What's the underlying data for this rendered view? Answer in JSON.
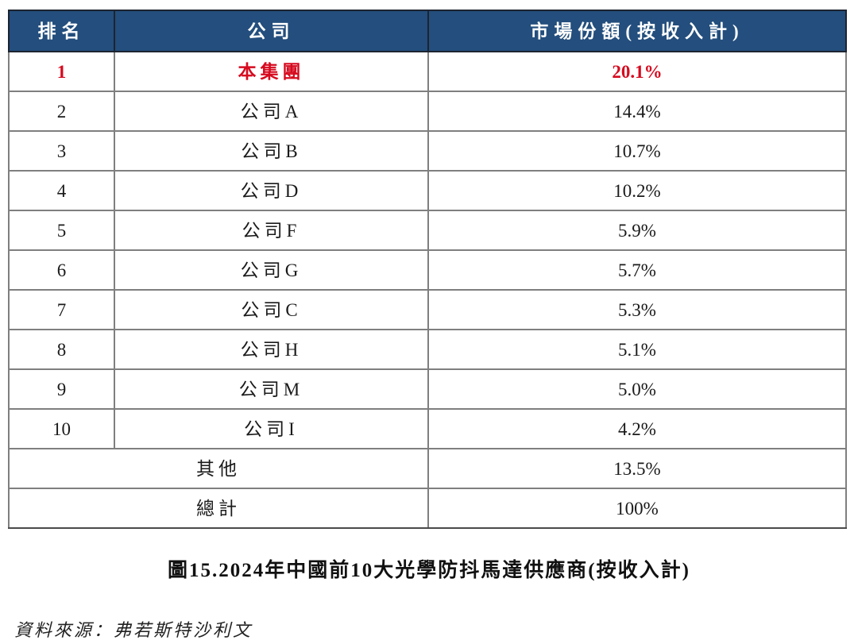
{
  "table": {
    "headers": {
      "rank": "排名",
      "company": "公司",
      "market_share": "市場份額(按收入計)"
    },
    "rows": [
      {
        "rank": "1",
        "company": "本集團",
        "share": "20.1%",
        "highlight": true
      },
      {
        "rank": "2",
        "company": "公司A",
        "share": "14.4%",
        "highlight": false
      },
      {
        "rank": "3",
        "company": "公司B",
        "share": "10.7%",
        "highlight": false
      },
      {
        "rank": "4",
        "company": "公司D",
        "share": "10.2%",
        "highlight": false
      },
      {
        "rank": "5",
        "company": "公司F",
        "share": "5.9%",
        "highlight": false
      },
      {
        "rank": "6",
        "company": "公司G",
        "share": "5.7%",
        "highlight": false
      },
      {
        "rank": "7",
        "company": "公司C",
        "share": "5.3%",
        "highlight": false
      },
      {
        "rank": "8",
        "company": "公司H",
        "share": "5.1%",
        "highlight": false
      },
      {
        "rank": "9",
        "company": "公司M",
        "share": "5.0%",
        "highlight": false
      },
      {
        "rank": "10",
        "company": "公司I",
        "share": "4.2%",
        "highlight": false
      }
    ],
    "summary_rows": [
      {
        "label": "其他",
        "share": "13.5%"
      },
      {
        "label": "總計",
        "share": "100%"
      }
    ]
  },
  "caption": "圖15.2024年中國前10大光學防抖馬達供應商(按收入計)",
  "source": "資料來源：弗若斯特沙利文",
  "colors": {
    "header_bg": "#234E7D",
    "header_text": "#FFFFFF",
    "highlight_red": "#D60A1F",
    "border_inner": "#7F7F7F",
    "body_text": "#1A1A1A"
  }
}
